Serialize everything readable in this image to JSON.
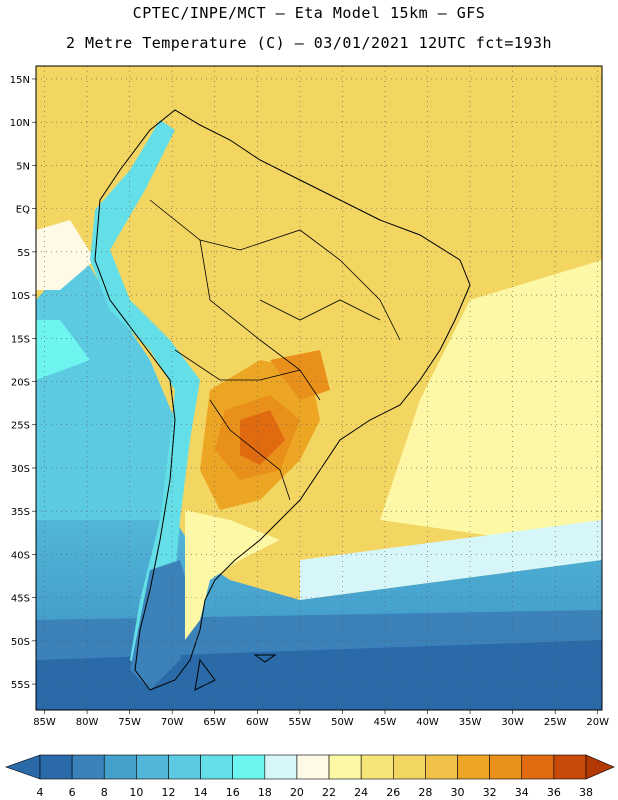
{
  "header": {
    "line1": "CPTEC/INPE/MCT –  Eta Model 15km – GFS",
    "line2": "2 Metre Temperature (C) – 03/01/2021 12UTC fct=193h"
  },
  "map": {
    "lat_labels": [
      "15N",
      "10N",
      "5N",
      "EQ",
      "5S",
      "10S",
      "15S",
      "20S",
      "25S",
      "30S",
      "35S",
      "40S",
      "45S",
      "50S",
      "55S"
    ],
    "lon_labels": [
      "85W",
      "80W",
      "75W",
      "70W",
      "65W",
      "60W",
      "55W",
      "50W",
      "45W",
      "40W",
      "35W",
      "30W",
      "25W",
      "20W"
    ],
    "lat_values": [
      15,
      10,
      5,
      0,
      -5,
      -10,
      -15,
      -20,
      -25,
      -30,
      -35,
      -40,
      -45,
      -50,
      -55
    ],
    "lon_values": [
      -85,
      -80,
      -75,
      -70,
      -65,
      -60,
      -55,
      -50,
      -45,
      -40,
      -35,
      -30,
      -25,
      -20
    ],
    "extent": {
      "lon_min": -86,
      "lon_max": -19.5,
      "lat_min": -58,
      "lat_max": 16.5
    }
  },
  "colorbar": {
    "values": [
      "4",
      "6",
      "8",
      "10",
      "12",
      "14",
      "16",
      "18",
      "20",
      "22",
      "24",
      "26",
      "28",
      "30",
      "32",
      "34",
      "36",
      "38"
    ],
    "colors": [
      "#2b6aa8",
      "#3b82bb",
      "#46a0cc",
      "#52b6d8",
      "#5ccbe2",
      "#64dfe8",
      "#6ff5f0",
      "#d6f6fa",
      "#fefae6",
      "#fdf8a6",
      "#f8e57a",
      "#f3d562",
      "#f0c248",
      "#eca623",
      "#e8901a",
      "#e06a10",
      "#c84a08",
      "#b23804"
    ]
  }
}
